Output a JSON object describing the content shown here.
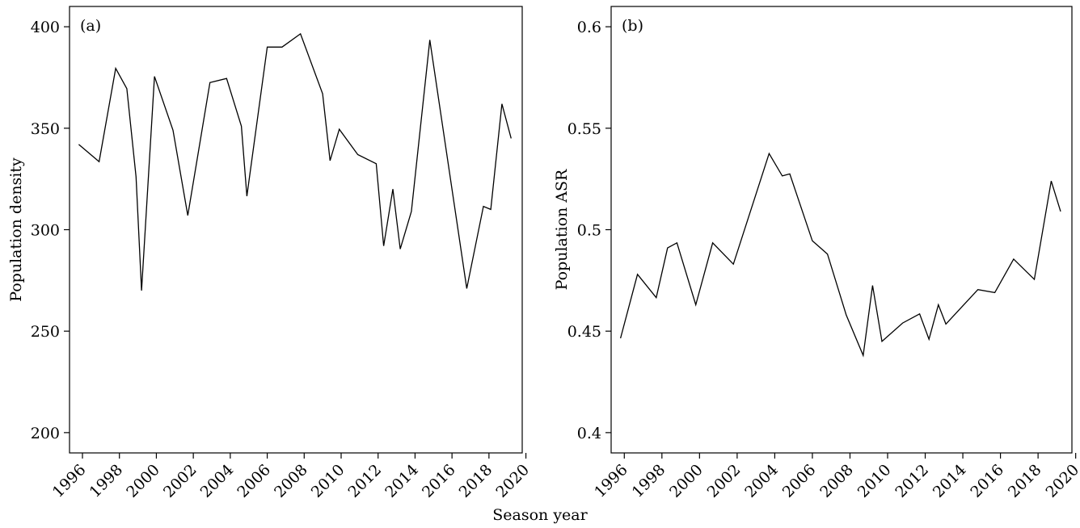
{
  "figure": {
    "xlabel": "Season year"
  },
  "chart_data": [
    {
      "type": "line",
      "panel_label": "(a)",
      "ylabel": "Population density",
      "xlim": [
        1995.3,
        2019.8
      ],
      "ylim": [
        190,
        410
      ],
      "x_ticks": [
        1996,
        1998,
        2000,
        2002,
        2004,
        2006,
        2008,
        2010,
        2012,
        2014,
        2016,
        2018,
        2020
      ],
      "y_ticks": [
        200,
        250,
        300,
        350,
        400
      ],
      "y_tick_labels": [
        "200",
        "250",
        "300",
        "350",
        "400"
      ],
      "grid": false,
      "series": [
        {
          "x": [
            1995.8,
            1996.9,
            1997.8,
            1998.4,
            1998.9,
            1999.2,
            1999.9,
            2000.9,
            2001.7,
            2002.9,
            2003.8,
            2004.6,
            2004.9,
            2006.0,
            2006.8,
            2007.8,
            2009.0,
            2009.4,
            2009.9,
            2010.9,
            2011.9,
            2012.3,
            2012.8,
            2013.2,
            2013.8,
            2014.8,
            2016.8,
            2017.7,
            2018.1,
            2018.7,
            2019.2
          ],
          "y": [
            342,
            333.5,
            379.5,
            369.5,
            326,
            270,
            375.5,
            349,
            307,
            372.5,
            374.5,
            351,
            316.5,
            390,
            390,
            396.5,
            367,
            334,
            349.5,
            337,
            332.5,
            292,
            320,
            290.5,
            309,
            393.5,
            271,
            311.5,
            310,
            362,
            345
          ]
        }
      ]
    },
    {
      "type": "line",
      "panel_label": "(b)",
      "ylabel": "Population ASR",
      "xlim": [
        1995.3,
        2019.8
      ],
      "ylim": [
        0.39,
        0.61
      ],
      "x_ticks": [
        1996,
        1998,
        2000,
        2002,
        2004,
        2006,
        2008,
        2010,
        2012,
        2014,
        2016,
        2018,
        2020
      ],
      "y_ticks": [
        0.4,
        0.45,
        0.5,
        0.55,
        0.6
      ],
      "y_tick_labels": [
        "0.4",
        "0.45",
        "0.5",
        "0.55",
        "0.6"
      ],
      "grid": false,
      "series": [
        {
          "x": [
            1995.8,
            1996.7,
            1997.7,
            1998.3,
            1998.8,
            1999.8,
            2000.7,
            2001.8,
            2003.7,
            2004.4,
            2004.8,
            2006.0,
            2006.8,
            2007.8,
            2008.7,
            2009.2,
            2009.7,
            2010.8,
            2011.7,
            2012.2,
            2012.7,
            2013.1,
            2014.8,
            2015.7,
            2016.7,
            2017.8,
            2018.7,
            2019.2
          ],
          "y": [
            0.4465,
            0.478,
            0.4665,
            0.491,
            0.4935,
            0.463,
            0.4935,
            0.483,
            0.5375,
            0.5265,
            0.5275,
            0.4945,
            0.488,
            0.458,
            0.438,
            0.4725,
            0.445,
            0.454,
            0.4585,
            0.446,
            0.463,
            0.4535,
            0.4705,
            0.469,
            0.4855,
            0.4755,
            0.524,
            0.509
          ]
        }
      ]
    }
  ]
}
